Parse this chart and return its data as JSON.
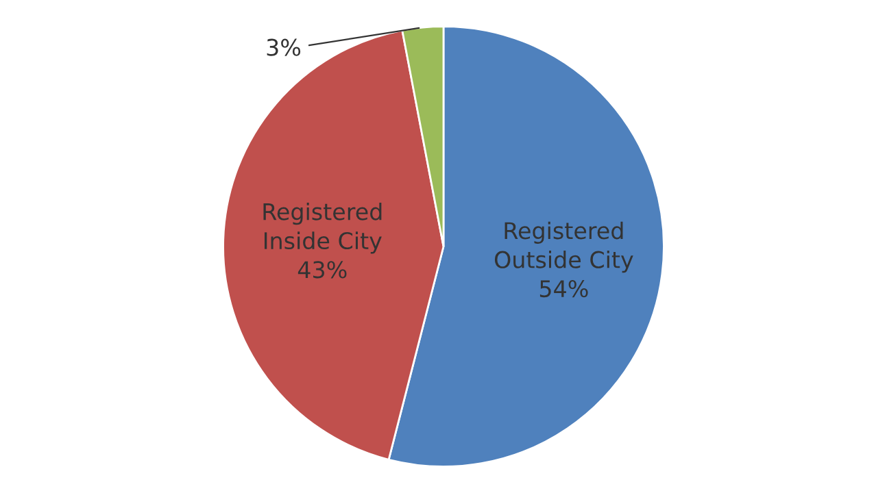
{
  "chart_data": {
    "type": "pie",
    "categories": [
      "Registered\nOutside City",
      "Registered\nInside City",
      null
    ],
    "values": [
      54,
      43,
      3
    ],
    "value_labels": [
      "54%",
      "43%",
      "3%"
    ],
    "colors": [
      "#4f81bd",
      "#c0504d",
      "#9bbb59"
    ],
    "legend": false
  }
}
